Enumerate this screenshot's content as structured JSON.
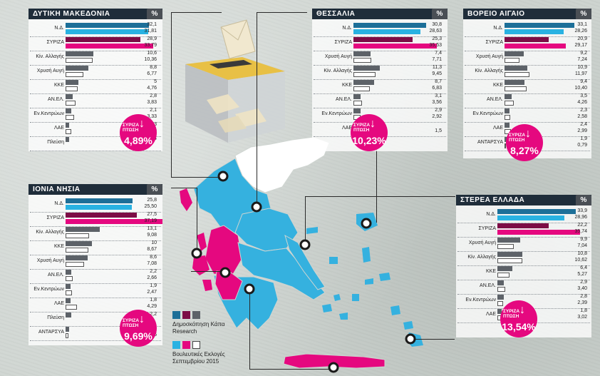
{
  "colors": {
    "nd_poll": "#1d6f98",
    "syriza_poll": "#7d0c46",
    "other_poll": "#5d6268",
    "nd_2015": "#29b2e2",
    "syriza_2015": "#e5087f",
    "other_2015": "#ffffff",
    "title_bg": "#1f2d3a",
    "drop_bg": "#e5087f",
    "map_blue": "#35b1df",
    "map_pink": "#e5087f"
  },
  "legend": {
    "poll_label": "Δημοσκόπηση Κάπα Research",
    "election_label": "Βουλευτικές Εκλογές Σεπτεμβρίου 2015"
  },
  "chart_data": [
    {
      "type": "bar",
      "title": "ΔΥΤΙΚΗ ΜΑΚΕΔΟΝΙΑ",
      "unit_badge": "%",
      "categories": [
        "Ν.Δ.",
        "ΣΥΡΙΖΑ",
        "Κίν. Αλλαγής",
        "Χρυσή Αυγή",
        "ΚΚΕ",
        "ΑΝ.ΕΛ.",
        "Εν.Κεντρώων",
        "ΛΑΕ",
        "Πλεύση"
      ],
      "series": [
        {
          "name": "Δημοσκόπηση Κάπα Research",
          "values": [
            32.1,
            28.9,
            10.6,
            8.8,
            5,
            2.8,
            2.1,
            1.3,
            1.4
          ]
        },
        {
          "name": "Βουλευτικές Εκλογές Σεπτεμβρίου 2015",
          "values": [
            31.81,
            33.79,
            10.36,
            6.77,
            4.76,
            3.83,
            3.33,
            2.29,
            null
          ]
        }
      ],
      "value_labels": [
        [
          "32,1",
          "28,9",
          "10,6",
          "8,8",
          "5",
          "2,8",
          "2,1",
          "1,3",
          "1,4"
        ],
        [
          "31,81",
          "33,79",
          "10,36",
          "6,77",
          "4,76",
          "3,83",
          "3,33",
          "2,29",
          ""
        ]
      ],
      "drop": {
        "label": "ΣΥΡΙΖΑ ΠΤΩΣΗ",
        "value": "4,89",
        "unit": "%"
      }
    },
    {
      "type": "bar",
      "title": "ΘΕΣΣΑΛΙΑ",
      "unit_badge": "%",
      "categories": [
        "Ν.Δ.",
        "ΣΥΡΙΖΑ",
        "Χρυσή Αυγή",
        "Κίν. Αλλαγής",
        "ΚΚΕ",
        "ΑΝ.ΕΛ.",
        "Εν.Κεντρώων",
        "ΛΑΕ"
      ],
      "series": [
        {
          "name": "Δημοσκόπηση Κάπα Research",
          "values": [
            30.8,
            25.3,
            7.4,
            11.3,
            8.7,
            3.1,
            2.9,
            null
          ]
        },
        {
          "name": "Βουλευτικές Εκλογές Σεπτεμβρίου 2015",
          "values": [
            28.63,
            35.53,
            7.71,
            9.45,
            6.83,
            3.56,
            2.92,
            1.5
          ]
        }
      ],
      "value_labels": [
        [
          "30,8",
          "25,3",
          "7,4",
          "11,3",
          "8,7",
          "3,1",
          "2,9",
          ""
        ],
        [
          "28,63",
          "35,53",
          "7,71",
          "9,45",
          "6,83",
          "3,56",
          "2,92",
          "1,5"
        ]
      ],
      "drop": {
        "label": "ΣΥΡΙΖΑ ΠΤΩΣΗ",
        "value": "10,23",
        "unit": "%"
      }
    },
    {
      "type": "bar",
      "title": "ΒΟΡΕΙΟ ΑΙΓΑΙΟ",
      "unit_badge": "%",
      "categories": [
        "Ν.Δ.",
        "ΣΥΡΙΖΑ",
        "Χρυσή Αυγή",
        "Κίν. Αλλαγής",
        "ΚΚΕ",
        "ΑΝ.ΕΛ.",
        "Εν.Κεντρώων",
        "ΛΑΕ",
        "ΑΝΤΑΡΣΥΑ"
      ],
      "series": [
        {
          "name": "Δημοσκόπηση Κάπα Research",
          "values": [
            33.1,
            20.9,
            9.2,
            10.9,
            9.4,
            3.5,
            2.3,
            2.4,
            1.9
          ]
        },
        {
          "name": "Βουλευτικές Εκλογές Σεπτεμβρίου 2015",
          "values": [
            28.26,
            29.17,
            7.24,
            11.97,
            10.4,
            4.26,
            2.58,
            2.99,
            0.79
          ]
        }
      ],
      "value_labels": [
        [
          "33,1",
          "20,9",
          "9,2",
          "10,9",
          "9,4",
          "3,5",
          "2,3",
          "2,4",
          "1,9"
        ],
        [
          "28,26",
          "29,17",
          "7,24",
          "11,97",
          "10,40",
          "4,26",
          "2,58",
          "2,99",
          "0,79"
        ]
      ],
      "drop": {
        "label": "ΣΥΡΙΖΑ ΠΤΩΣΗ",
        "value": "8,27",
        "unit": "%"
      }
    },
    {
      "type": "bar",
      "title": "ΙΟΝΙΑ ΝΗΣΙΑ",
      "unit_badge": "%",
      "categories": [
        "Ν.Δ.",
        "ΣΥΡΙΖΑ",
        "Κίν. Αλλαγής",
        "ΚΚΕ",
        "Χρυσή Αυγή",
        "ΑΝ.ΕΛ.",
        "Εν.Κεντρώων",
        "ΛΑΕ",
        "Πλεύση",
        "ΑΝΤΑΡΣΥΑ"
      ],
      "series": [
        {
          "name": "Δημοσκόπηση Κάπα Research",
          "values": [
            25.8,
            27.5,
            13.1,
            10,
            8.6,
            2.2,
            1.9,
            1.8,
            2.2,
            1.4
          ]
        },
        {
          "name": "Βουλευτικές Εκλογές Σεπτεμβρίου 2015",
          "values": [
            25.5,
            37.19,
            9.08,
            8.67,
            7.08,
            2.66,
            2.47,
            4.29,
            null,
            0.96
          ]
        }
      ],
      "value_labels": [
        [
          "25,8",
          "27,5",
          "13,1",
          "10",
          "8,6",
          "2,2",
          "1,9",
          "1,8",
          "2,2",
          "1,4"
        ],
        [
          "25,50",
          "37,19",
          "9,08",
          "8,67",
          "7,08",
          "2,66",
          "2,47",
          "4,29",
          "",
          "0,96"
        ]
      ],
      "drop": {
        "label": "ΣΥΡΙΖΑ ΠΤΩΣΗ",
        "value": "9,69",
        "unit": "%"
      }
    },
    {
      "type": "bar",
      "title": "ΣΤΕΡΕΑ ΕΛΛΑΔΑ",
      "unit_badge": "%",
      "categories": [
        "Ν.Δ.",
        "ΣΥΡΙΖΑ",
        "Χρυσή Αυγή",
        "Κίν. Αλλαγής",
        "ΚΚΕ",
        "ΑΝ.ΕΛ.",
        "Εν.Κεντρώων",
        "ΛΑΕ"
      ],
      "series": [
        {
          "name": "Δημοσκόπηση Κάπα Research",
          "values": [
            33.9,
            22.2,
            9.9,
            10.8,
            6.4,
            2.9,
            2.8,
            1.8
          ]
        },
        {
          "name": "Βουλευτικές Εκλογές Σεπτεμβρίου 2015",
          "values": [
            28.96,
            35.74,
            7.04,
            10.62,
            5.27,
            3.4,
            2.39,
            3.02
          ]
        }
      ],
      "value_labels": [
        [
          "33,9",
          "22,2",
          "9,9",
          "10,8",
          "6,4",
          "2,9",
          "2,8",
          "1,8"
        ],
        [
          "28,96",
          "35,74",
          "7,04",
          "10,62",
          "5,27",
          "3,40",
          "2,39",
          "3,02"
        ]
      ],
      "drop": {
        "label": "ΣΥΡΙΖΑ ΠΤΩΣΗ",
        "value": "13,54",
        "unit": "%"
      }
    }
  ]
}
